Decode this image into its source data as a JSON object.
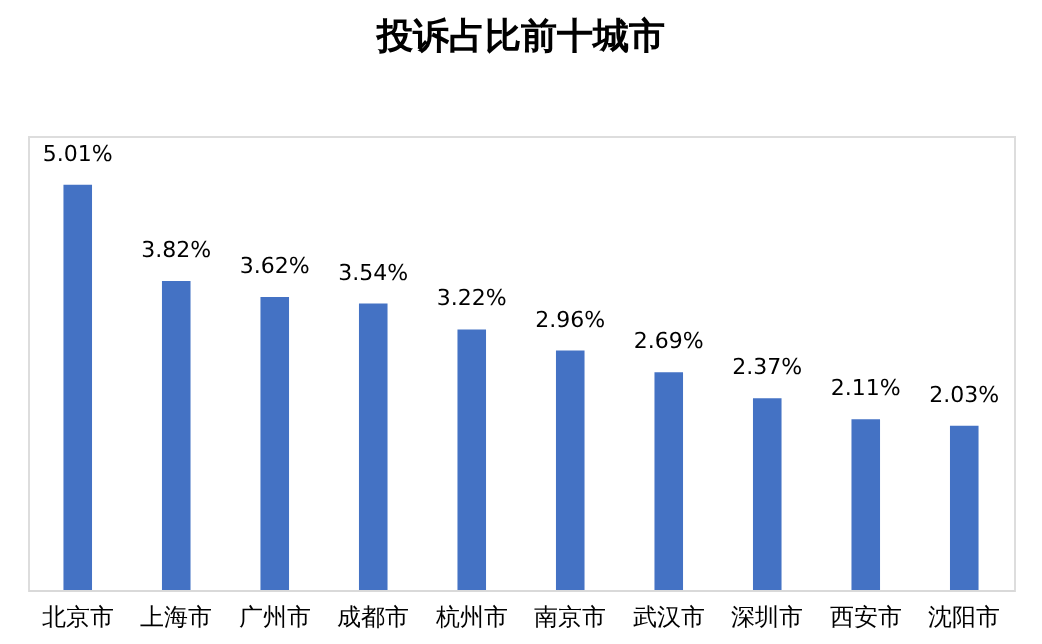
{
  "chart_data": {
    "type": "bar",
    "title": "投诉占比前十城市",
    "categories": [
      "北京市",
      "上海市",
      "广州市",
      "成都市",
      "杭州市",
      "南京市",
      "武汉市",
      "深圳市",
      "西安市",
      "沈阳市"
    ],
    "values": [
      5.01,
      3.82,
      3.62,
      3.54,
      3.22,
      2.96,
      2.69,
      2.37,
      2.11,
      2.03
    ],
    "value_labels": [
      "5.01%",
      "3.82%",
      "3.62%",
      "3.54%",
      "3.22%",
      "2.96%",
      "2.69%",
      "2.37%",
      "2.11%",
      "2.03%"
    ],
    "color": "#4472c4"
  }
}
